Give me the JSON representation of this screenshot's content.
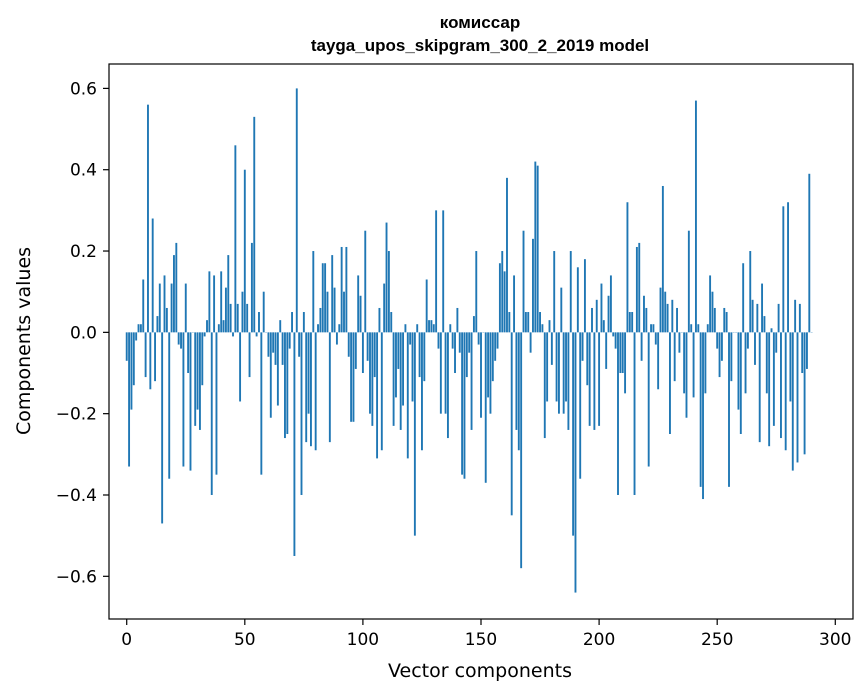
{
  "chart_data": {
    "type": "bar",
    "title": "комиссар",
    "subtitle": "tayga_upos_skipgram_300_2_2019 model",
    "xlabel": "Vector components",
    "ylabel": "Components values",
    "xlim": [
      -7.5,
      307.5
    ],
    "ylim": [
      -0.705,
      0.66
    ],
    "x_ticks": [
      0,
      50,
      100,
      150,
      200,
      250,
      300
    ],
    "x_tick_labels": [
      "0",
      "50",
      "100",
      "150",
      "200",
      "250",
      "300"
    ],
    "y_ticks": [
      0.6,
      0.4,
      0.2,
      0.0,
      -0.2,
      -0.4,
      -0.6
    ],
    "y_tick_labels": [
      "0.6",
      "0.4",
      "0.2",
      "0.0",
      "−0.2",
      "−0.4",
      "−0.6"
    ],
    "bar_color": "#1f77b4",
    "values": [
      -0.07,
      -0.33,
      -0.19,
      -0.13,
      -0.02,
      0.02,
      0.02,
      0.13,
      -0.11,
      0.56,
      -0.14,
      0.28,
      -0.12,
      0.04,
      0.12,
      -0.47,
      0.14,
      0.06,
      -0.36,
      0.12,
      0.19,
      0.22,
      -0.03,
      -0.04,
      -0.33,
      0.12,
      -0.1,
      -0.34,
      0.0,
      -0.23,
      -0.19,
      -0.24,
      -0.13,
      -0.01,
      0.03,
      0.15,
      -0.4,
      0.14,
      -0.35,
      0.02,
      0.15,
      0.03,
      0.11,
      0.19,
      0.07,
      -0.01,
      0.46,
      0.07,
      -0.17,
      0.1,
      0.4,
      0.07,
      -0.11,
      0.22,
      0.53,
      -0.01,
      0.05,
      -0.35,
      0.1,
      0.0,
      -0.06,
      -0.21,
      -0.05,
      -0.08,
      -0.18,
      0.03,
      -0.08,
      -0.26,
      -0.25,
      -0.04,
      0.05,
      -0.55,
      0.6,
      -0.06,
      -0.4,
      0.05,
      -0.27,
      -0.2,
      -0.28,
      0.2,
      -0.29,
      0.02,
      0.06,
      0.17,
      0.17,
      0.1,
      -0.27,
      0.19,
      0.11,
      -0.03,
      0.02,
      0.21,
      0.1,
      0.21,
      -0.06,
      -0.22,
      -0.22,
      -0.09,
      0.14,
      0.09,
      -0.1,
      0.25,
      -0.07,
      -0.2,
      -0.23,
      -0.11,
      -0.31,
      0.06,
      -0.29,
      0.12,
      0.27,
      0.2,
      0.05,
      -0.23,
      -0.16,
      -0.09,
      -0.24,
      -0.18,
      0.02,
      -0.31,
      -0.03,
      -0.17,
      -0.5,
      0.02,
      -0.11,
      -0.29,
      -0.12,
      0.13,
      0.03,
      0.03,
      0.02,
      0.3,
      -0.04,
      -0.2,
      0.3,
      -0.2,
      -0.26,
      0.02,
      -0.04,
      -0.1,
      0.06,
      -0.05,
      -0.35,
      -0.36,
      -0.11,
      -0.05,
      -0.24,
      0.04,
      0.2,
      -0.03,
      -0.21,
      0.0,
      -0.37,
      -0.16,
      -0.2,
      -0.12,
      -0.07,
      -0.04,
      0.17,
      0.2,
      0.15,
      0.38,
      0.05,
      -0.45,
      0.14,
      -0.24,
      -0.29,
      -0.58,
      0.25,
      0.05,
      0.05,
      -0.05,
      0.23,
      0.42,
      0.41,
      0.05,
      0.02,
      -0.26,
      -0.17,
      0.03,
      -0.08,
      0.2,
      -0.17,
      -0.2,
      0.11,
      -0.2,
      -0.17,
      -0.24,
      0.2,
      -0.5,
      -0.64,
      0.16,
      -0.36,
      -0.07,
      0.18,
      -0.13,
      -0.23,
      0.06,
      -0.24,
      0.08,
      -0.23,
      0.12,
      0.03,
      -0.09,
      0.09,
      0.14,
      -0.01,
      -0.04,
      -0.4,
      -0.1,
      -0.1,
      -0.15,
      0.32,
      0.05,
      0.05,
      -0.4,
      0.21,
      0.22,
      -0.07,
      0.09,
      0.06,
      -0.33,
      0.02,
      0.02,
      -0.03,
      -0.14,
      0.11,
      0.36,
      0.1,
      0.07,
      -0.25,
      0.08,
      -0.12,
      0.06,
      -0.05,
      0.0,
      -0.15,
      -0.21,
      0.25,
      0.02,
      -0.16,
      0.57,
      0.02,
      -0.38,
      -0.41,
      -0.15,
      0.02,
      0.14,
      0.1,
      0.06,
      -0.04,
      -0.11,
      -0.07,
      0.06,
      0.05,
      -0.38,
      -0.12,
      0.0,
      0.0,
      -0.19,
      -0.25,
      0.17,
      -0.15,
      -0.04,
      0.2,
      0.08,
      -0.08,
      0.07,
      -0.27,
      0.12,
      0.04,
      -0.15,
      -0.28,
      0.01,
      -0.23,
      -0.05,
      0.07,
      -0.26,
      0.31,
      -0.29,
      0.32,
      -0.17,
      -0.34,
      0.08,
      -0.32,
      0.07,
      -0.1,
      -0.3,
      -0.09,
      0.39,
      0.0
    ]
  }
}
